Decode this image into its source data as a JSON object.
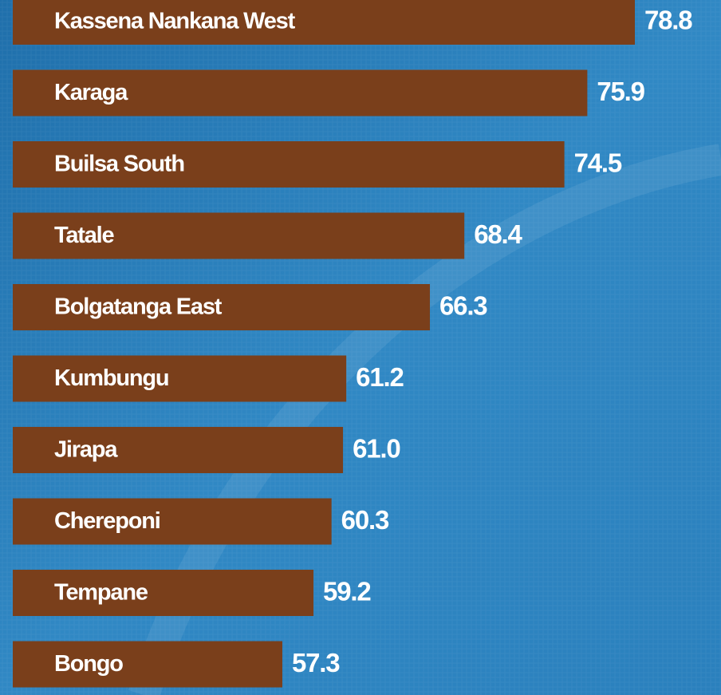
{
  "chart_data": {
    "type": "bar",
    "orientation": "horizontal",
    "categories": [
      "Kassena Nankana West",
      "Karaga",
      "Builsa South",
      "Tatale",
      "Bolgatanga East",
      "Kumbungu",
      "Jirapa",
      "Chereponi",
      "Tempane",
      "Bongo"
    ],
    "values": [
      78.8,
      75.9,
      74.5,
      68.4,
      66.3,
      61.2,
      61.0,
      60.3,
      59.2,
      57.3
    ],
    "value_labels": [
      "78.8",
      "75.9",
      "74.5",
      "68.4",
      "66.3",
      "61.2",
      "61.0",
      "60.3",
      "59.2",
      "57.3"
    ],
    "color": "#7a3f1b"
  }
}
